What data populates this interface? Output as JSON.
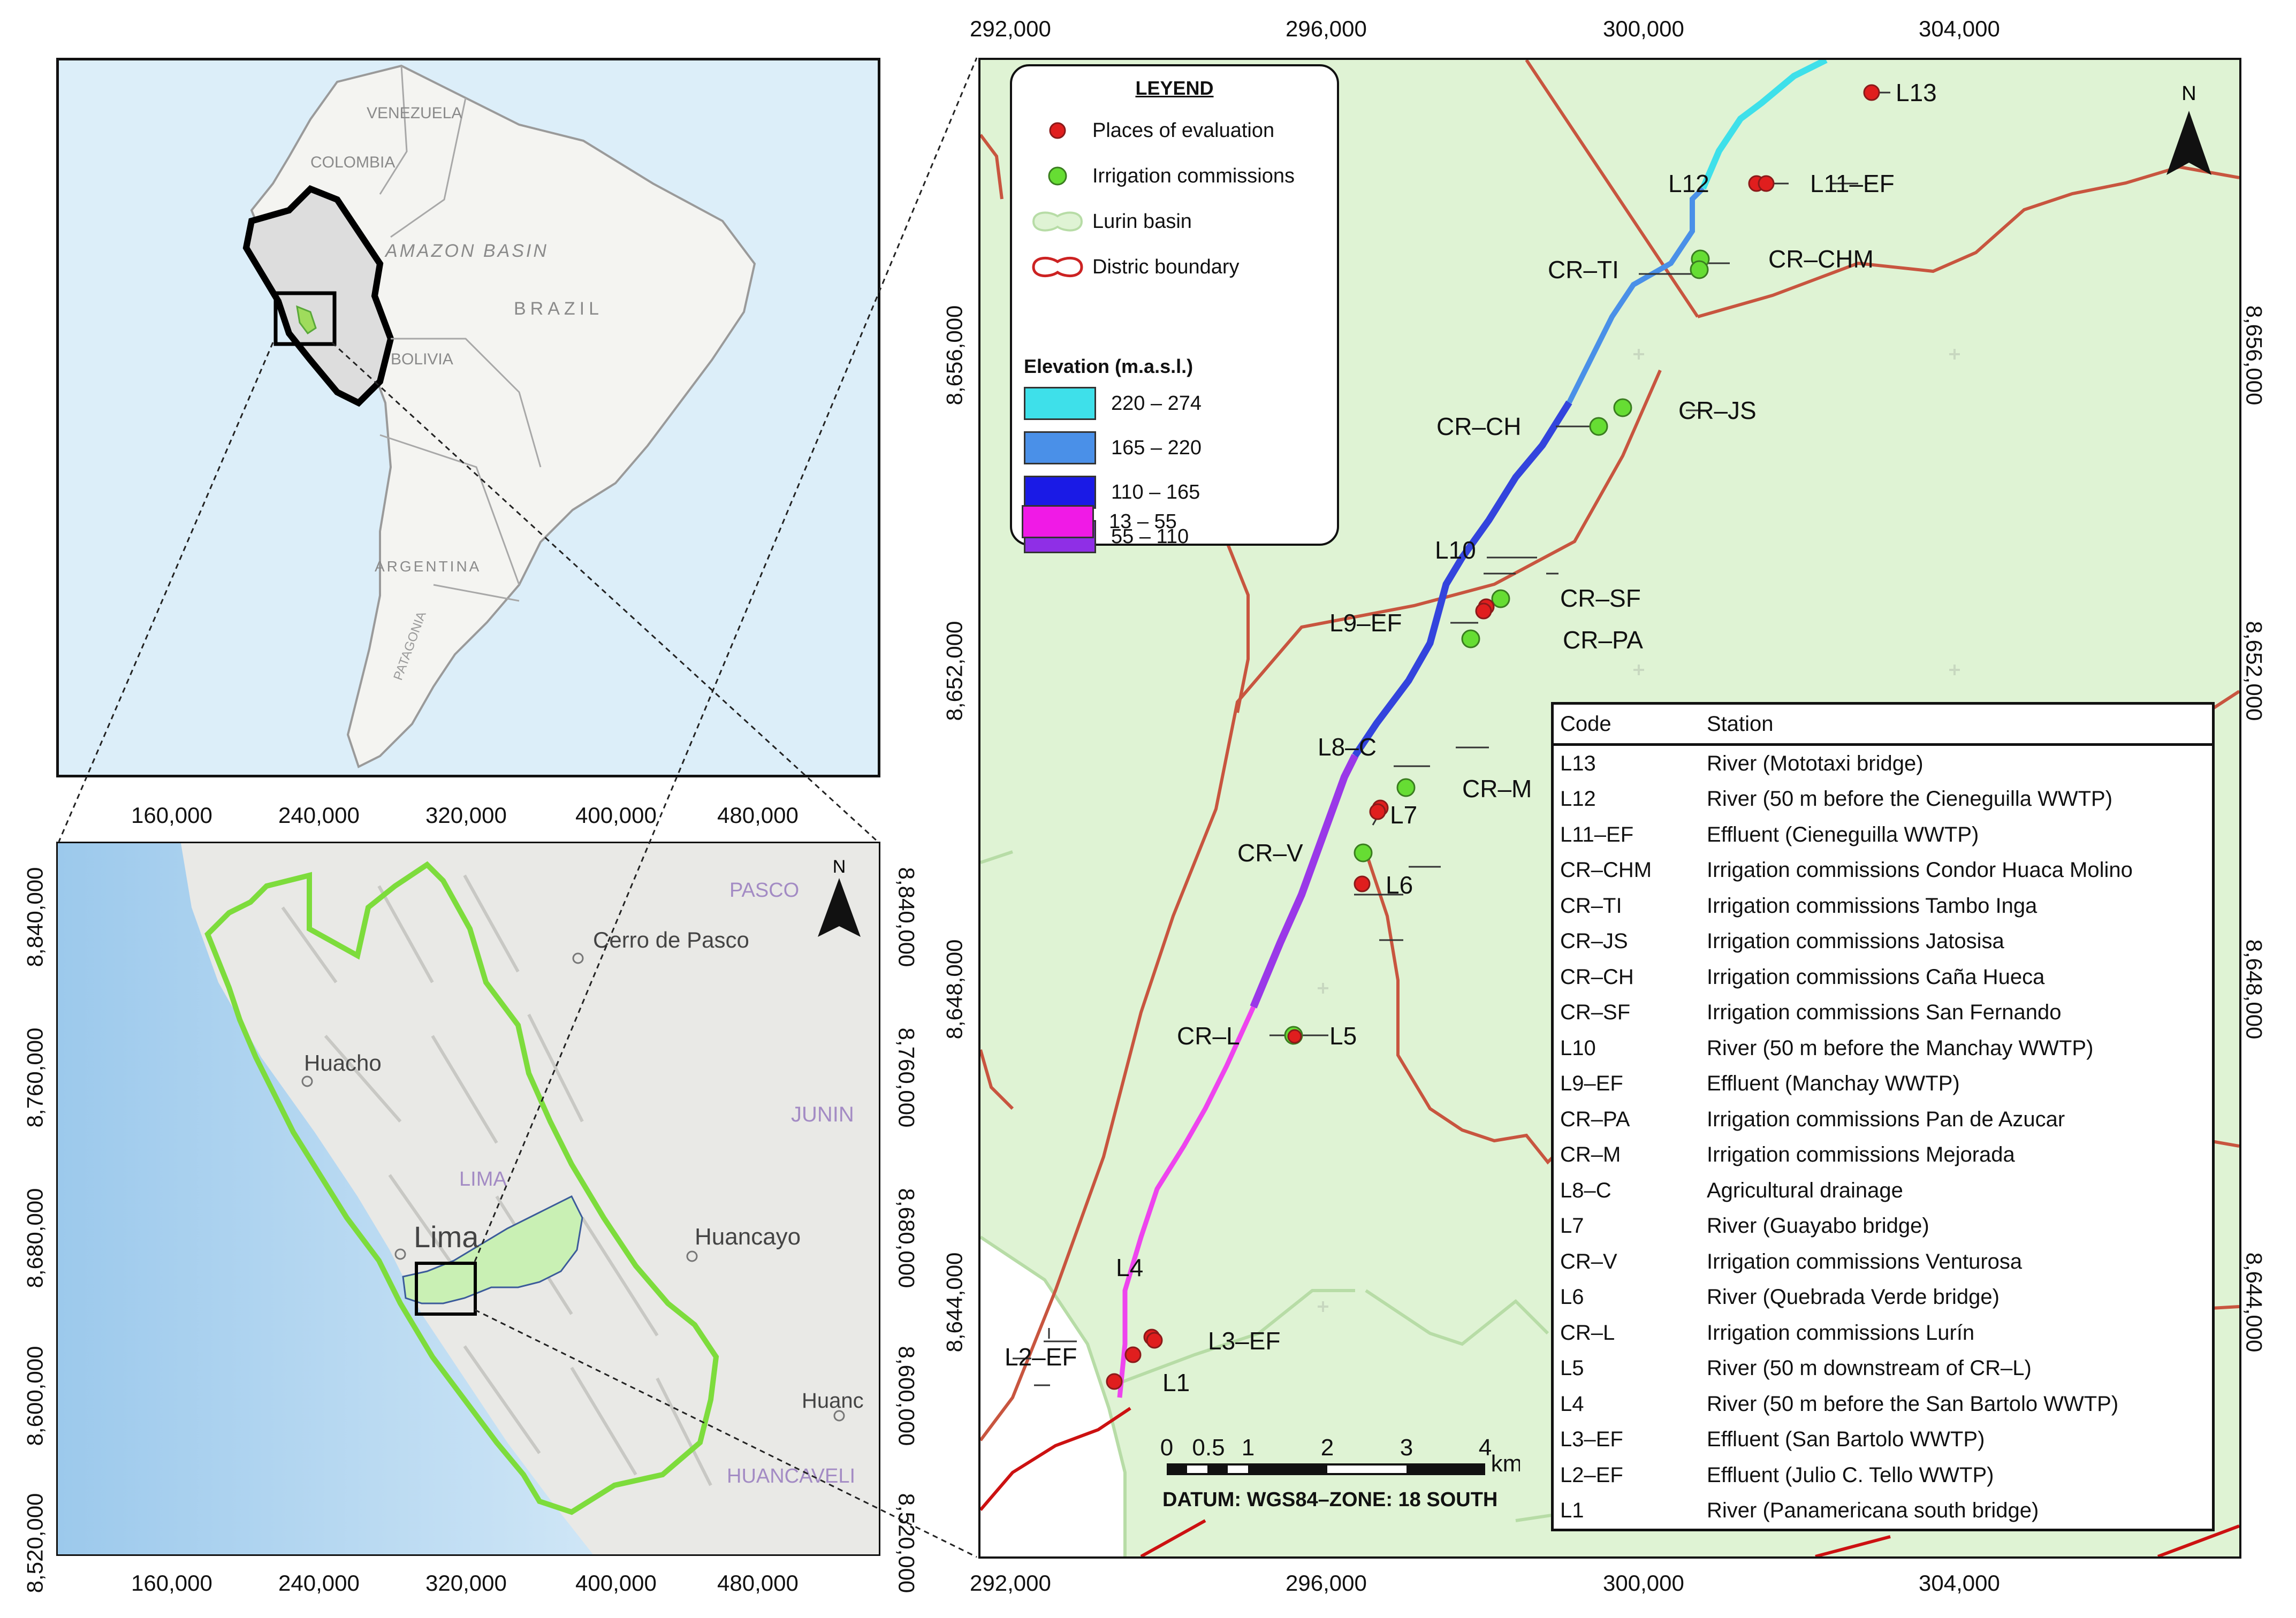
{
  "overview_map": {
    "labels": [
      "VENEZUELA",
      "COLOMBIA",
      "AMAZON BASIN",
      "BRAZIL",
      "BOLIVIA",
      "ARGENTINA",
      "PATAGONIA"
    ]
  },
  "regional_map": {
    "x_ticks": [
      "160,000",
      "240,000",
      "320,000",
      "400,000",
      "480,000"
    ],
    "y_ticks": [
      "8,840,000",
      "8,760,000",
      "8,680,000",
      "8,600,000",
      "8,520,000"
    ],
    "north_label": "N",
    "labels": {
      "pasco": "PASCO",
      "cerro": "Cerro de Pasco",
      "huacho": "Huacho",
      "junin": "JUNIN",
      "lima_region": "LIMA",
      "lima": "Lima",
      "huancayo": "Huancayo",
      "huanc": "Huanc",
      "huancavelica": "HUANCAVELI"
    }
  },
  "main_map": {
    "x_ticks": [
      "292,000",
      "296,000",
      "300,000",
      "304,000"
    ],
    "y_ticks": [
      "8,656,000",
      "8,652,000",
      "8,648,000",
      "8,644,000"
    ],
    "north_label": "N",
    "points": [
      {
        "code": "L13",
        "kind": "evaluation"
      },
      {
        "code": "L12",
        "kind": "evaluation"
      },
      {
        "code": "L11–EF",
        "kind": "evaluation"
      },
      {
        "code": "CR–CHM",
        "kind": "irrigation"
      },
      {
        "code": "CR–TI",
        "kind": "irrigation"
      },
      {
        "code": "CR–JS",
        "kind": "irrigation"
      },
      {
        "code": "CR–CH",
        "kind": "irrigation"
      },
      {
        "code": "L10",
        "kind": "evaluation"
      },
      {
        "code": "CR–SF",
        "kind": "irrigation"
      },
      {
        "code": "L9–EF",
        "kind": "evaluation"
      },
      {
        "code": "CR–PA",
        "kind": "irrigation"
      },
      {
        "code": "L8–C",
        "kind": "evaluation"
      },
      {
        "code": "CR–M",
        "kind": "irrigation"
      },
      {
        "code": "L7",
        "kind": "evaluation"
      },
      {
        "code": "CR–V",
        "kind": "irrigation"
      },
      {
        "code": "L6",
        "kind": "evaluation"
      },
      {
        "code": "CR–L",
        "kind": "irrigation"
      },
      {
        "code": "L5",
        "kind": "evaluation"
      },
      {
        "code": "L4",
        "kind": "evaluation"
      },
      {
        "code": "L3–EF",
        "kind": "evaluation"
      },
      {
        "code": "L2–EF",
        "kind": "evaluation"
      },
      {
        "code": "L1",
        "kind": "evaluation"
      }
    ]
  },
  "legend": {
    "title": "LEYEND",
    "items": [
      {
        "label": "Places of evaluation",
        "color": "#e01e1e"
      },
      {
        "label": "Irrigation commissions",
        "color": "#66dd33"
      },
      {
        "label": "Lurin basin",
        "color": "#dff3d4"
      },
      {
        "label": "Distric boundary",
        "color": "#cc2222"
      }
    ],
    "elevation_title": "Elevation (m.a.s.l.)",
    "elevation": [
      {
        "range": "220 – 274",
        "color": "#3ee0ea"
      },
      {
        "range": "165 – 220",
        "color": "#4a90e8"
      },
      {
        "range": "110 – 165",
        "color": "#1a1ae6"
      },
      {
        "range": "55 – 110",
        "color": "#8f2fe6"
      },
      {
        "range": "13 – 55",
        "color": "#f01ae6"
      }
    ]
  },
  "station_table": {
    "header_code": "Code",
    "header_station": "Station",
    "rows": [
      {
        "code": "L13",
        "station": "River (Mototaxi bridge)"
      },
      {
        "code": "L12",
        "station": "River (50 m before the Cieneguilla WWTP)"
      },
      {
        "code": "L11–EF",
        "station": "Effluent (Cieneguilla WWTP)"
      },
      {
        "code": "CR–CHM",
        "station": "Irrigation commissions Condor Huaca Molino"
      },
      {
        "code": "CR–TI",
        "station": "Irrigation commissions Tambo Inga"
      },
      {
        "code": "CR–JS",
        "station": "Irrigation commissions Jatosisa"
      },
      {
        "code": "CR–CH",
        "station": "Irrigation commissions Caña Hueca"
      },
      {
        "code": "CR–SF",
        "station": "Irrigation commissions San Fernando"
      },
      {
        "code": "L10",
        "station": "River (50 m before the Manchay WWTP)"
      },
      {
        "code": "L9–EF",
        "station": "Effluent (Manchay WWTP)"
      },
      {
        "code": "CR–PA",
        "station": "Irrigation commissions Pan de Azucar"
      },
      {
        "code": "CR–M",
        "station": "Irrigation commissions Mejorada"
      },
      {
        "code": "L8–C",
        "station": "Agricultural drainage"
      },
      {
        "code": "L7",
        "station": "River (Guayabo bridge)"
      },
      {
        "code": "CR–V",
        "station": "Irrigation commissions Venturosa"
      },
      {
        "code": "L6",
        "station": "River (Quebrada Verde bridge)"
      },
      {
        "code": "CR–L",
        "station": "Irrigation commissions Lurín"
      },
      {
        "code": "L5",
        "station": "River (50 m downstream of CR–L)"
      },
      {
        "code": "L4",
        "station": "River (50 m before the San Bartolo WWTP)"
      },
      {
        "code": "L3–EF",
        "station": "Effluent (San Bartolo WWTP)"
      },
      {
        "code": "L2–EF",
        "station": "Effluent (Julio C. Tello WWTP)"
      },
      {
        "code": "L1",
        "station": "River (Panamericana south bridge)"
      }
    ]
  },
  "scale_bar": {
    "labels": [
      "0",
      "0.5",
      "1",
      "2",
      "3",
      "4"
    ],
    "unit": "km",
    "datum": "DATUM: WGS84–ZONE: 18 SOUTH"
  }
}
